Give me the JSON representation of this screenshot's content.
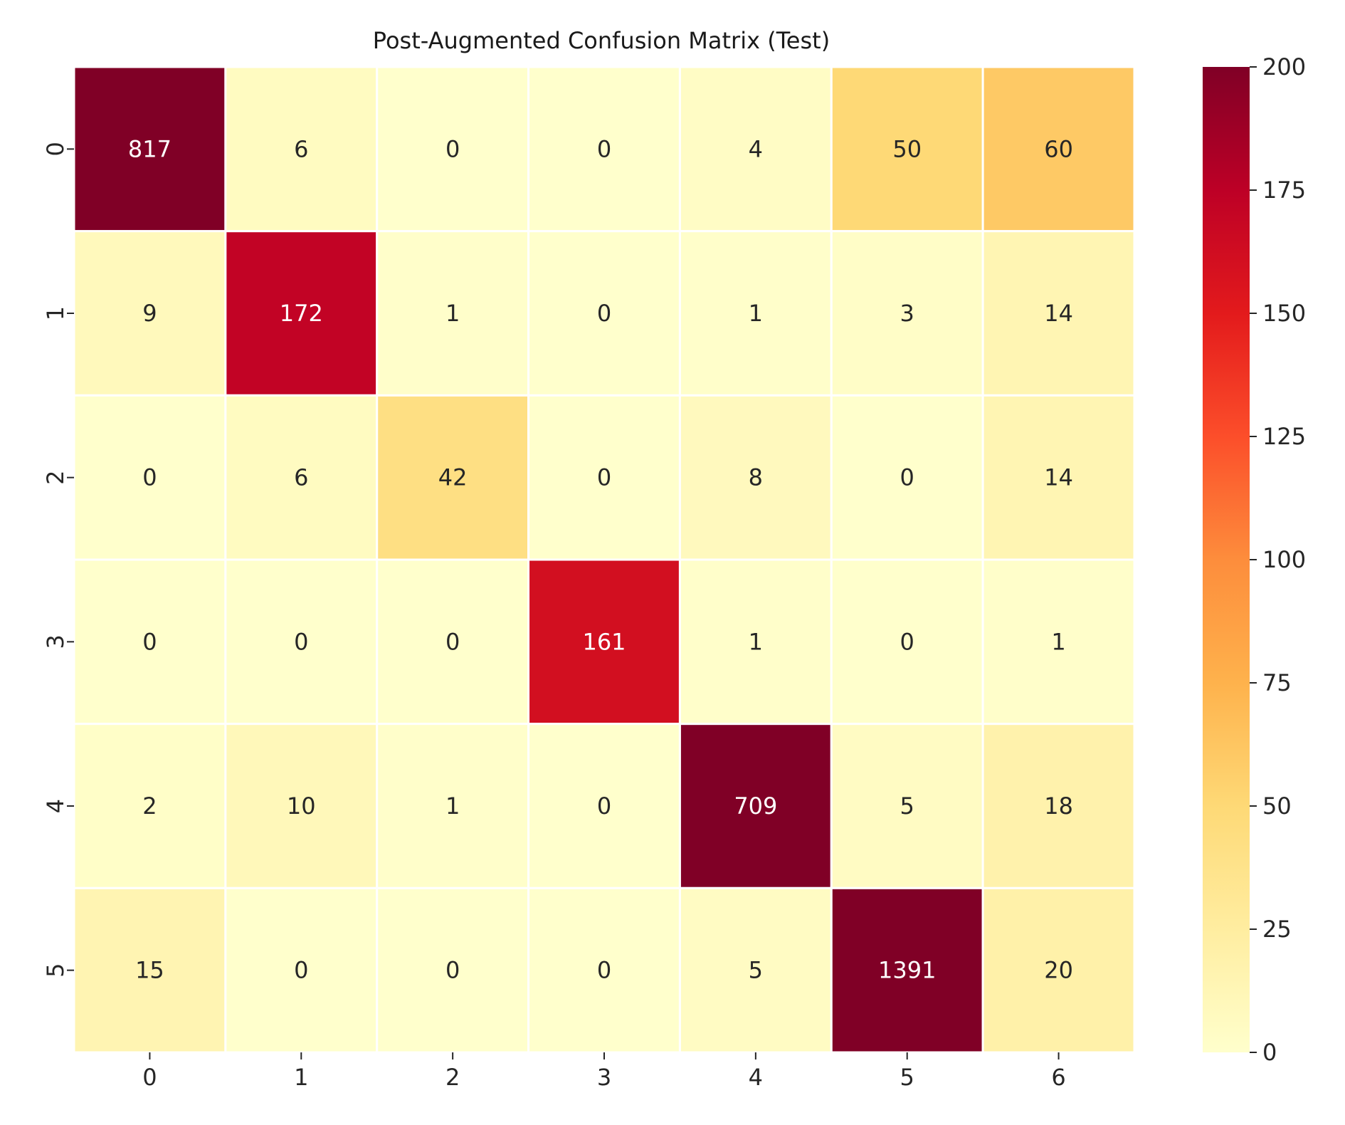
{
  "chart_data": {
    "type": "heatmap",
    "title": "Post-Augmented Confusion Matrix (Test)",
    "xlabel": "",
    "ylabel": "",
    "x_categories": [
      "0",
      "1",
      "2",
      "3",
      "4",
      "5",
      "6"
    ],
    "y_categories": [
      "0",
      "1",
      "2",
      "3",
      "4",
      "5"
    ],
    "values": [
      [
        817,
        6,
        0,
        0,
        4,
        50,
        60
      ],
      [
        9,
        172,
        1,
        0,
        1,
        3,
        14
      ],
      [
        0,
        6,
        42,
        0,
        8,
        0,
        14
      ],
      [
        0,
        0,
        0,
        161,
        1,
        0,
        1
      ],
      [
        2,
        10,
        1,
        0,
        709,
        5,
        18
      ],
      [
        15,
        0,
        0,
        0,
        5,
        1391,
        20
      ]
    ],
    "colorbar": {
      "min": 0,
      "max": 200,
      "ticks": [
        0,
        25,
        50,
        75,
        100,
        125,
        150,
        175,
        200
      ],
      "colormap": "YlOrRd",
      "colors": [
        "#ffffcc",
        "#ffeda0",
        "#fed976",
        "#feb24c",
        "#fd8d3c",
        "#fc4e2a",
        "#e31a1c",
        "#bd0026",
        "#800026"
      ]
    },
    "grid": false,
    "legend": "colorbar-right"
  }
}
